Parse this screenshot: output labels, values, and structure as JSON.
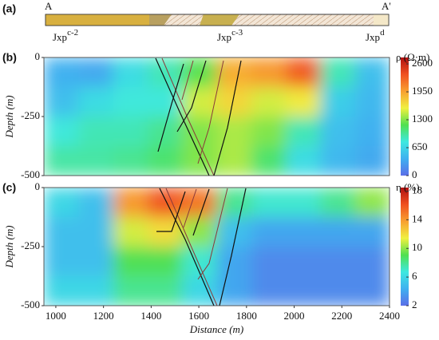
{
  "panel_a": {
    "label": "(a)",
    "left": "A",
    "right": "A'",
    "units": [
      {
        "base": "Jxp",
        "sup": "c-2"
      },
      {
        "base": "Jxp",
        "sup": "c-3"
      },
      {
        "base": "Jxp",
        "sup": "d"
      }
    ]
  },
  "chart_data": [
    {
      "type": "heatmap",
      "label": "(b)",
      "colorbar_label": "ρ (Ω·m)",
      "ylabel": "Depth (m)",
      "x": [
        1022.5,
        1167.5,
        1312.5,
        1457.5,
        1602.5,
        1747.5,
        1892.5,
        2037.5,
        2182.5,
        2327.5
      ],
      "y": [
        -62.5,
        -187.5,
        -312.5,
        -437.5
      ],
      "z": [
        [
          400,
          350,
          700,
          900,
          1200,
          1900,
          2000,
          2300,
          900,
          500
        ],
        [
          500,
          700,
          800,
          800,
          1500,
          1700,
          1500,
          1600,
          600,
          450
        ],
        [
          800,
          900,
          900,
          1000,
          1300,
          1400,
          1300,
          900,
          500,
          400
        ],
        [
          950,
          950,
          1000,
          1100,
          1300,
          1400,
          1100,
          700,
          450,
          350
        ]
      ],
      "xlim": [
        950,
        2400
      ],
      "ylim": [
        -500,
        0
      ],
      "yticks": [
        0,
        -250,
        -500
      ],
      "clim": [
        0,
        2750
      ],
      "cticks": [
        0,
        650,
        1300,
        1950,
        2600
      ],
      "colormap": [
        "#5b6ee8",
        "#3fb0f0",
        "#3ee8e0",
        "#50e050",
        "#f0f040",
        "#f8a030",
        "#f05020",
        "#b01010"
      ]
    },
    {
      "type": "heatmap",
      "label": "(c)",
      "colorbar_label": "η (%)",
      "ylabel": "Depth (m)",
      "xlabel": "Distance (m)",
      "x": [
        1022.5,
        1167.5,
        1312.5,
        1457.5,
        1602.5,
        1747.5,
        1892.5,
        2037.5,
        2182.5,
        2327.5
      ],
      "y": [
        -62.5,
        -187.5,
        -312.5,
        -437.5
      ],
      "z": [
        [
          6,
          5,
          14,
          16,
          15,
          8,
          7,
          7,
          8,
          10
        ],
        [
          5,
          5,
          11,
          12,
          10,
          5,
          4,
          4,
          4,
          4
        ],
        [
          5,
          5,
          9,
          9,
          7,
          4,
          3,
          3,
          3,
          3
        ],
        [
          6,
          6,
          8,
          8,
          6,
          4,
          3,
          3,
          3,
          3
        ]
      ],
      "xlim": [
        950,
        2400
      ],
      "ylim": [
        -500,
        0
      ],
      "yticks": [
        0,
        -250,
        -500
      ],
      "xticks": [
        1000,
        1200,
        1400,
        1600,
        1800,
        2000,
        2200,
        2400
      ],
      "clim": [
        2,
        18.5
      ],
      "cticks": [
        2,
        6,
        10,
        14,
        18
      ],
      "colormap": [
        "#5b6ee8",
        "#3fb0f0",
        "#3ee8e0",
        "#50e050",
        "#f0f040",
        "#f8a030",
        "#f05020",
        "#b01010"
      ]
    }
  ]
}
